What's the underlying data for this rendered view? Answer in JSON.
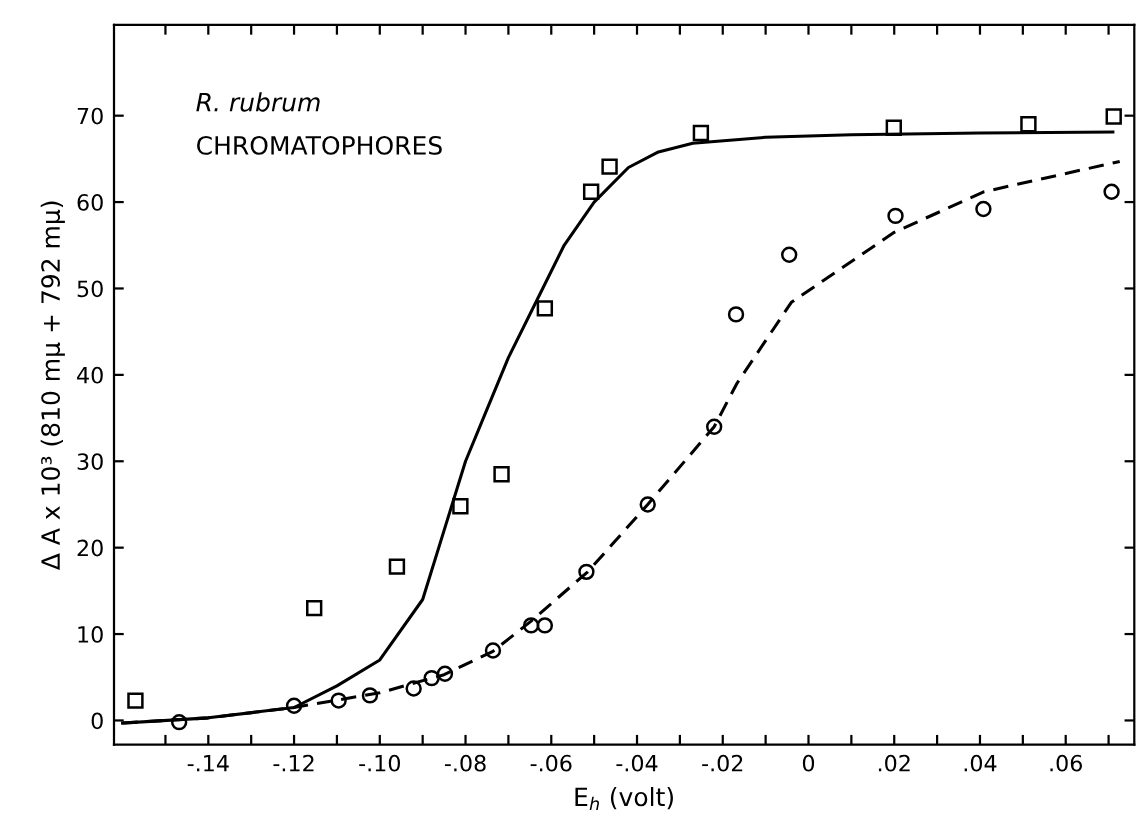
{
  "chart_data": {
    "type": "scatter",
    "xlabel": "E$_{h}$ (volt)",
    "ylabel": "Δ A x 10³ (810 mμ + 792 mμ)",
    "annotations": [
      "R. rubrum",
      "CHROMATOPHORES"
    ],
    "xlim": [
      -0.162,
      0.076
    ],
    "ylim": [
      -2.8,
      80.5
    ],
    "xticks": [
      {
        "value": -0.15,
        "label": null
      },
      {
        "value": -0.14,
        "label": "-.14"
      },
      {
        "value": -0.13,
        "label": null
      },
      {
        "value": -0.12,
        "label": "-.12"
      },
      {
        "value": -0.11,
        "label": null
      },
      {
        "value": -0.1,
        "label": "-.10"
      },
      {
        "value": -0.09,
        "label": null
      },
      {
        "value": -0.08,
        "label": "-.08"
      },
      {
        "value": -0.07,
        "label": null
      },
      {
        "value": -0.06,
        "label": "-.06"
      },
      {
        "value": -0.05,
        "label": null
      },
      {
        "value": -0.04,
        "label": "-.04"
      },
      {
        "value": -0.03,
        "label": null
      },
      {
        "value": -0.02,
        "label": "-.02"
      },
      {
        "value": -0.01,
        "label": null
      },
      0,
      {
        "value": 0.01,
        "label": null
      },
      {
        "value": 0.02,
        "label": ".02"
      },
      {
        "value": 0.03,
        "label": null
      },
      {
        "value": 0.04,
        "label": ".04"
      },
      {
        "value": 0.05,
        "label": null
      },
      {
        "value": 0.06,
        "label": ".06"
      },
      {
        "value": 0.07,
        "label": null
      }
    ],
    "yticks": [
      0,
      10,
      20,
      30,
      40,
      50,
      60,
      70
    ],
    "grid": false,
    "legend": false,
    "series": [
      {
        "marker": "square",
        "color": "#000000",
        "x": [
          -0.157,
          -0.1153,
          -0.096,
          -0.0812,
          -0.0716,
          -0.0615,
          -0.0507,
          -0.0464,
          -0.0251,
          0.0199,
          0.0513,
          0.0712
        ],
        "values": [
          2.3,
          13,
          17.8,
          24.8,
          28.5,
          47.7,
          61.2,
          64.1,
          68,
          68.6,
          69,
          69.9
        ]
      },
      {
        "marker": "circle",
        "color": "#000000",
        "x": [
          -0.1468,
          -0.12,
          -0.1096,
          -0.1023,
          -0.0921,
          -0.0879,
          -0.0848,
          -0.0736,
          -0.0647,
          -0.0615,
          -0.0518,
          -0.0375,
          -0.022,
          -0.0169,
          -0.0045,
          0.0203,
          0.0408,
          0.0707
        ],
        "values": [
          -0.2,
          1.7,
          2.3,
          2.9,
          3.7,
          4.9,
          5.4,
          8.1,
          11,
          11,
          17.2,
          25,
          34,
          47,
          53.9,
          58.4,
          59.2,
          61.2
        ]
      },
      {
        "type": "line",
        "line_style": "solid",
        "color": "#000000",
        "x": [
          -0.16,
          -0.14,
          -0.12,
          -0.11,
          -0.1,
          -0.09,
          -0.085,
          -0.08,
          -0.075,
          -0.07,
          -0.062,
          -0.057,
          -0.05,
          -0.042,
          -0.035,
          -0.027,
          -0.01,
          0.01,
          0.04,
          0.071
        ],
        "values": [
          -0.3,
          0.3,
          1.5,
          4,
          7,
          14,
          22,
          30,
          36,
          42,
          50,
          55,
          60,
          64,
          65.8,
          66.8,
          67.5,
          67.8,
          68,
          68.1
        ]
      },
      {
        "type": "line",
        "line_style": "dashed",
        "color": "#000000",
        "x": [
          -0.16,
          -0.14,
          -0.12,
          -0.1,
          -0.085,
          -0.0736,
          -0.0647,
          -0.0515,
          -0.0375,
          -0.022,
          -0.0167,
          -0.004,
          0.02,
          0.041,
          0.0726
        ],
        "values": [
          -0.3,
          0.3,
          1.5,
          3.2,
          5.3,
          8,
          11.5,
          17.2,
          25,
          34,
          39,
          48.4,
          56.5,
          61.2,
          64.7
        ]
      }
    ]
  }
}
